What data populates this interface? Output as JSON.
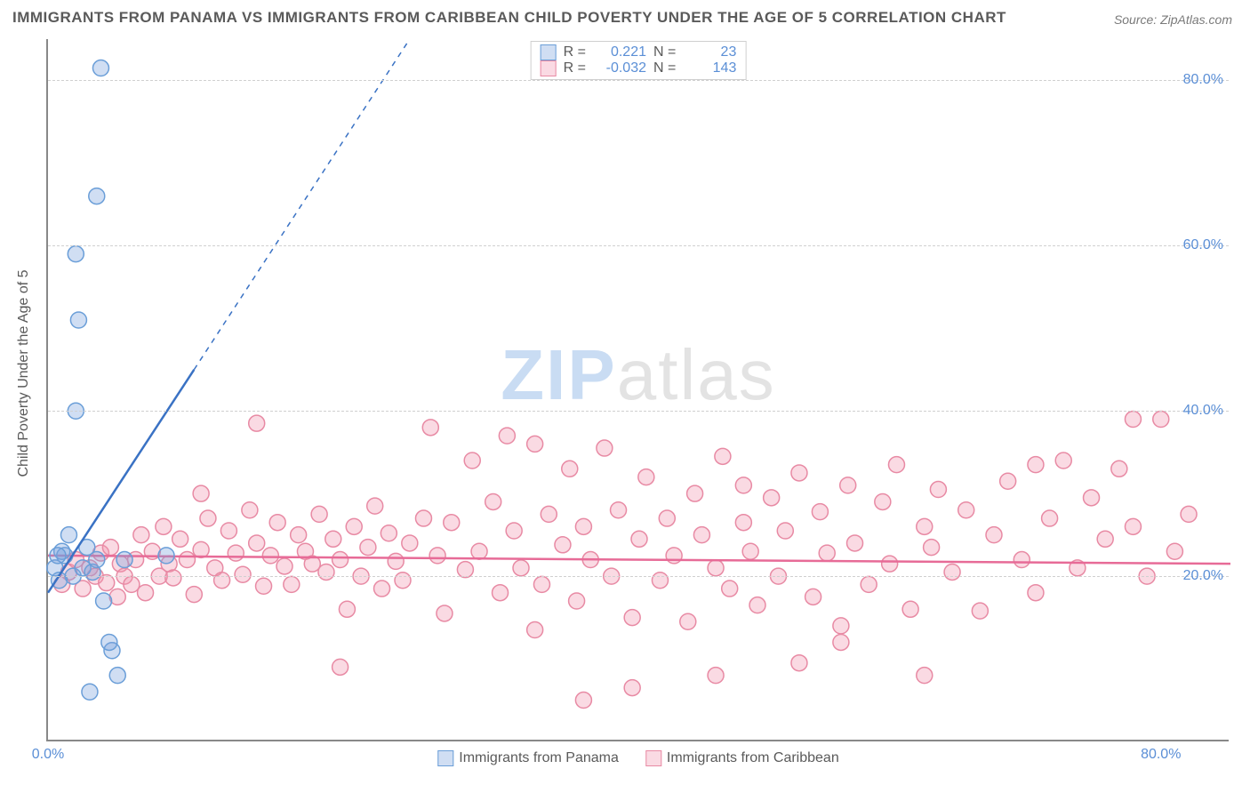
{
  "title": "IMMIGRANTS FROM PANAMA VS IMMIGRANTS FROM CARIBBEAN CHILD POVERTY UNDER THE AGE OF 5 CORRELATION CHART",
  "source": "Source: ZipAtlas.com",
  "y_axis_label": "Child Poverty Under the Age of 5",
  "watermark_prefix": "ZIP",
  "watermark_suffix": "atlas",
  "chart": {
    "type": "scatter",
    "xlim": [
      0,
      85
    ],
    "ylim": [
      0,
      85
    ],
    "x_ticks": [
      0,
      80
    ],
    "y_ticks": [
      20,
      40,
      60,
      80
    ],
    "x_tick_labels": [
      "0.0%",
      "80.0%"
    ],
    "y_tick_labels": [
      "20.0%",
      "40.0%",
      "60.0%",
      "80.0%"
    ],
    "grid_color": "#d0d0d0",
    "background_color": "#ffffff",
    "axis_color": "#888888",
    "series": [
      {
        "name": "Immigrants from Panama",
        "marker_color_fill": "rgba(120,160,220,0.35)",
        "marker_color_stroke": "#6a9ed8",
        "line_color": "#3a72c4",
        "marker_radius": 9,
        "R_label": "R =",
        "R_value": "0.221",
        "N_label": "N =",
        "N_value": "23",
        "trend_line": {
          "x1": 0,
          "y1": 18,
          "x2": 10.5,
          "y2": 45,
          "dash_to_x": 26,
          "dash_to_y": 85
        },
        "points": [
          [
            3.8,
            81.5
          ],
          [
            3.5,
            66
          ],
          [
            2.0,
            59
          ],
          [
            2.2,
            51
          ],
          [
            2.0,
            40
          ],
          [
            4.6,
            11
          ],
          [
            4.4,
            12
          ],
          [
            5.0,
            8
          ],
          [
            3.0,
            6
          ],
          [
            4.0,
            17
          ],
          [
            1.5,
            25
          ],
          [
            0.5,
            21
          ],
          [
            1.2,
            22.5
          ],
          [
            1.8,
            20
          ],
          [
            0.8,
            19.5
          ],
          [
            2.5,
            21
          ],
          [
            3.2,
            20.5
          ],
          [
            1.0,
            23
          ],
          [
            2.8,
            23.5
          ],
          [
            0.7,
            22.5
          ],
          [
            3.5,
            22
          ],
          [
            8.5,
            22.5
          ],
          [
            5.5,
            22
          ]
        ]
      },
      {
        "name": "Immigrants from Caribbean",
        "marker_color_fill": "rgba(240,150,175,0.35)",
        "marker_color_stroke": "#e88aa4",
        "line_color": "#e76b97",
        "marker_radius": 9,
        "R_label": "R =",
        "R_value": "-0.032",
        "N_label": "N =",
        "N_value": "143",
        "trend_line": {
          "x1": 0,
          "y1": 22.5,
          "x2": 85,
          "y2": 21.5
        },
        "points": [
          [
            1,
            19
          ],
          [
            1.5,
            20.5
          ],
          [
            2,
            22
          ],
          [
            2.5,
            18.5
          ],
          [
            3,
            21
          ],
          [
            3.4,
            20
          ],
          [
            3.8,
            22.8
          ],
          [
            4.2,
            19.2
          ],
          [
            4.5,
            23.5
          ],
          [
            5,
            17.5
          ],
          [
            5.2,
            21.5
          ],
          [
            5.5,
            20
          ],
          [
            6,
            19
          ],
          [
            6.3,
            22
          ],
          [
            6.7,
            25
          ],
          [
            7,
            18
          ],
          [
            7.5,
            23
          ],
          [
            8,
            20
          ],
          [
            8.3,
            26
          ],
          [
            8.7,
            21.5
          ],
          [
            9,
            19.8
          ],
          [
            9.5,
            24.5
          ],
          [
            10,
            22
          ],
          [
            10.5,
            17.8
          ],
          [
            11,
            23.2
          ],
          [
            11.5,
            27
          ],
          [
            12,
            21
          ],
          [
            12.5,
            19.5
          ],
          [
            13,
            25.5
          ],
          [
            13.5,
            22.8
          ],
          [
            14,
            20.2
          ],
          [
            14.5,
            28
          ],
          [
            15,
            24
          ],
          [
            15.5,
            18.8
          ],
          [
            16,
            22.5
          ],
          [
            16.5,
            26.5
          ],
          [
            17,
            21.2
          ],
          [
            17.5,
            19
          ],
          [
            18,
            25
          ],
          [
            18.5,
            23
          ],
          [
            19,
            21.5
          ],
          [
            19.5,
            27.5
          ],
          [
            20,
            20.5
          ],
          [
            20.5,
            24.5
          ],
          [
            21,
            22
          ],
          [
            21.5,
            16
          ],
          [
            22,
            26
          ],
          [
            22.5,
            20
          ],
          [
            23,
            23.5
          ],
          [
            23.5,
            28.5
          ],
          [
            24,
            18.5
          ],
          [
            24.5,
            25.2
          ],
          [
            25,
            21.8
          ],
          [
            25.5,
            19.5
          ],
          [
            26,
            24
          ],
          [
            27,
            27
          ],
          [
            28,
            22.5
          ],
          [
            28.5,
            15.5
          ],
          [
            29,
            26.5
          ],
          [
            30,
            20.8
          ],
          [
            30.5,
            34
          ],
          [
            31,
            23
          ],
          [
            32,
            29
          ],
          [
            32.5,
            18
          ],
          [
            33,
            37
          ],
          [
            33.5,
            25.5
          ],
          [
            34,
            21
          ],
          [
            35,
            36
          ],
          [
            35.5,
            19
          ],
          [
            36,
            27.5
          ],
          [
            37,
            23.8
          ],
          [
            37.5,
            33
          ],
          [
            38,
            17
          ],
          [
            38.5,
            26
          ],
          [
            39,
            22
          ],
          [
            40,
            35.5
          ],
          [
            40.5,
            20
          ],
          [
            41,
            28
          ],
          [
            42,
            15
          ],
          [
            42.5,
            24.5
          ],
          [
            43,
            32
          ],
          [
            44,
            19.5
          ],
          [
            44.5,
            27
          ],
          [
            45,
            22.5
          ],
          [
            46,
            14.5
          ],
          [
            46.5,
            30
          ],
          [
            47,
            25
          ],
          [
            48,
            21
          ],
          [
            48.5,
            34.5
          ],
          [
            49,
            18.5
          ],
          [
            50,
            26.5
          ],
          [
            50.5,
            23
          ],
          [
            51,
            16.5
          ],
          [
            52,
            29.5
          ],
          [
            52.5,
            20
          ],
          [
            53,
            25.5
          ],
          [
            54,
            32.5
          ],
          [
            55,
            17.5
          ],
          [
            55.5,
            27.8
          ],
          [
            56,
            22.8
          ],
          [
            57,
            14
          ],
          [
            57.5,
            31
          ],
          [
            58,
            24
          ],
          [
            59,
            19
          ],
          [
            60,
            29
          ],
          [
            60.5,
            21.5
          ],
          [
            61,
            33.5
          ],
          [
            62,
            16
          ],
          [
            63,
            26
          ],
          [
            63.5,
            23.5
          ],
          [
            64,
            30.5
          ],
          [
            65,
            20.5
          ],
          [
            66,
            28
          ],
          [
            67,
            15.8
          ],
          [
            68,
            25
          ],
          [
            69,
            31.5
          ],
          [
            70,
            22
          ],
          [
            71,
            18
          ],
          [
            72,
            27
          ],
          [
            73,
            34
          ],
          [
            74,
            21
          ],
          [
            75,
            29.5
          ],
          [
            76,
            24.5
          ],
          [
            77,
            33
          ],
          [
            78,
            26
          ],
          [
            79,
            20
          ],
          [
            80,
            39
          ],
          [
            81,
            23
          ],
          [
            82,
            27.5
          ],
          [
            38.5,
            5
          ],
          [
            48,
            8
          ],
          [
            50,
            31
          ],
          [
            54,
            9.5
          ],
          [
            57,
            12
          ],
          [
            21,
            9
          ],
          [
            15,
            38.5
          ],
          [
            27.5,
            38
          ],
          [
            78,
            39
          ],
          [
            71,
            33.5
          ],
          [
            63,
            8
          ],
          [
            42,
            6.5
          ],
          [
            35,
            13.5
          ],
          [
            11,
            30
          ]
        ]
      }
    ]
  }
}
